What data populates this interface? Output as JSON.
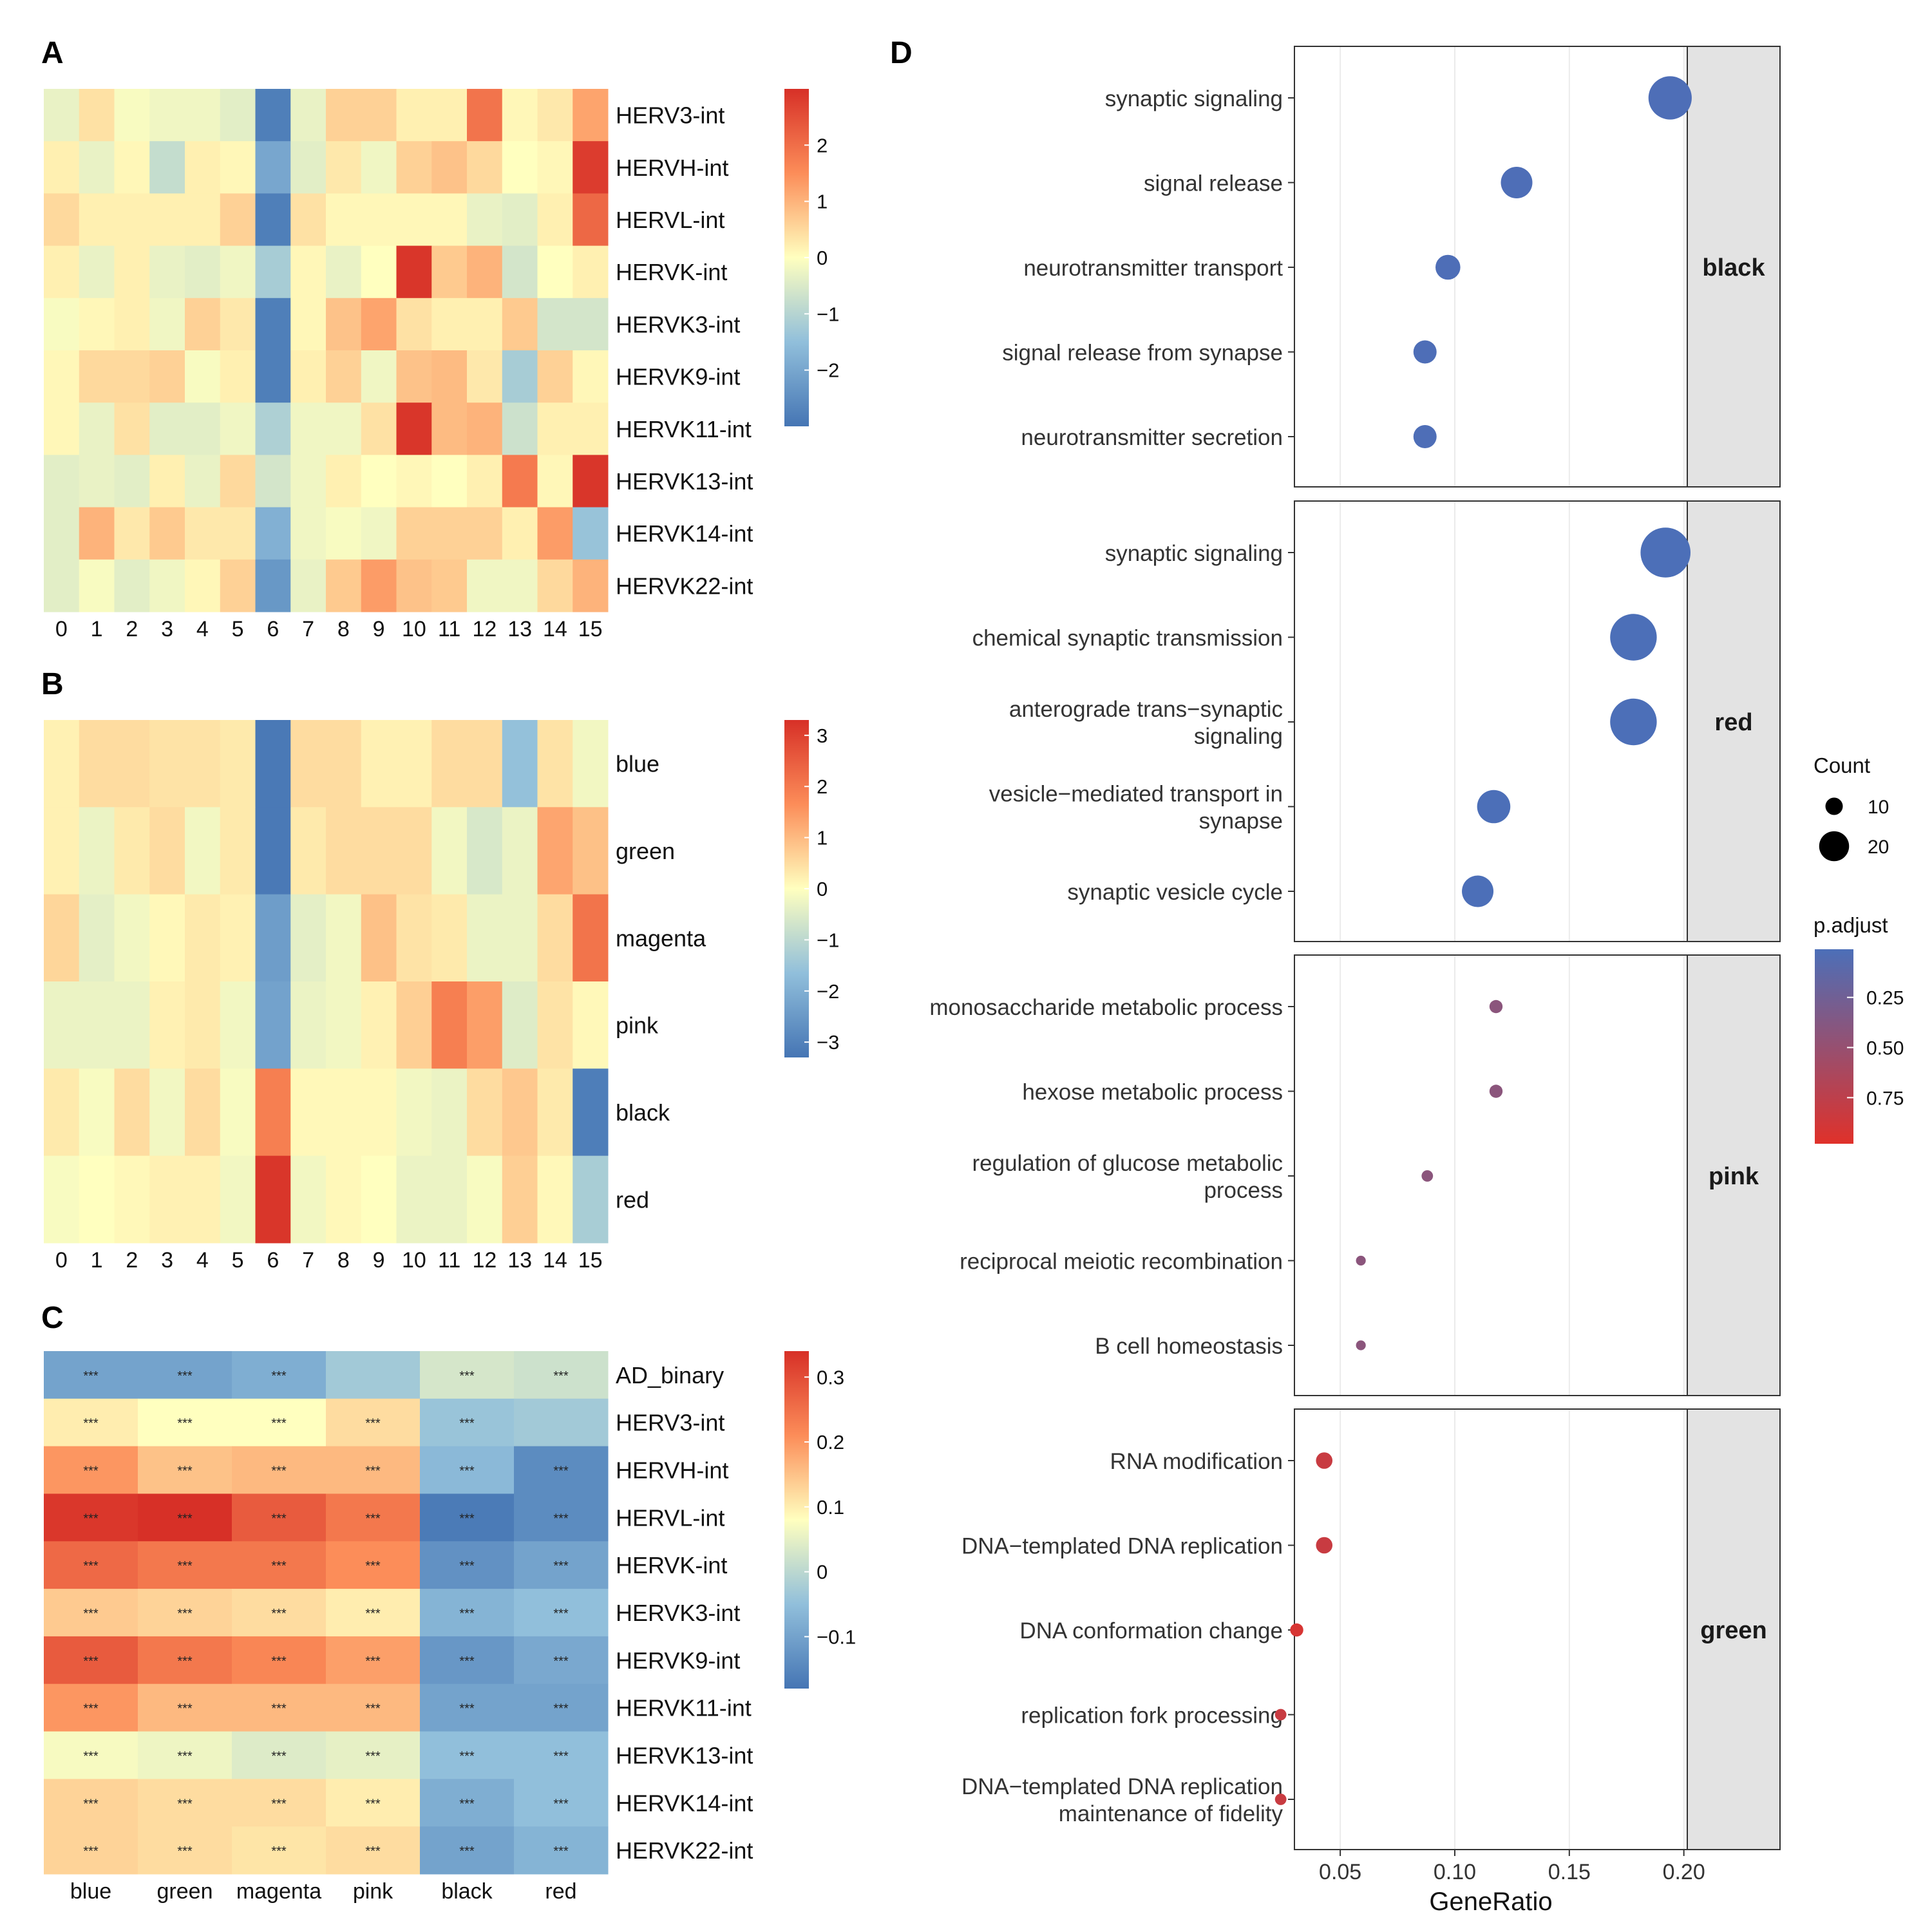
{
  "figure": {
    "panel_labels": [
      "A",
      "B",
      "C",
      "D"
    ],
    "colors": {
      "div_low": "#4575b4",
      "div_midlow": "#91bfdb",
      "div_mid": "#ffffbf",
      "div_midhigh": "#fc8d59",
      "div_high": "#d73027",
      "padj_low": "#4c6fb8",
      "padj_high": "#e0312a",
      "facet_strip": "#e3e3e3",
      "grid": "#ebebeb"
    }
  },
  "chart_data": [
    {
      "id": "A",
      "type": "heatmap",
      "columns": [
        "0",
        "1",
        "2",
        "3",
        "4",
        "5",
        "6",
        "7",
        "8",
        "9",
        "10",
        "11",
        "12",
        "13",
        "14",
        "15"
      ],
      "rows": [
        "HERV3-int",
        "HERVH-int",
        "HERVL-int",
        "HERVK-int",
        "HERVK3-int",
        "HERVK9-int",
        "HERVK11-int",
        "HERVK13-int",
        "HERVK14-int",
        "HERVK22-int"
      ],
      "values": [
        [
          -0.3,
          0.4,
          -0.1,
          -0.2,
          -0.2,
          -0.4,
          -2.8,
          -0.3,
          0.6,
          0.6,
          0.2,
          0.2,
          1.9,
          0.1,
          0.3,
          1.2
        ],
        [
          0.2,
          -0.3,
          0.1,
          -0.8,
          0.2,
          0.1,
          -2.0,
          -0.4,
          0.3,
          -0.2,
          0.6,
          0.8,
          0.5,
          0.0,
          0.1,
          2.8
        ],
        [
          0.5,
          0.2,
          0.2,
          0.2,
          0.2,
          0.6,
          -2.8,
          0.4,
          0.1,
          0.1,
          0.1,
          0.1,
          -0.3,
          -0.4,
          0.2,
          2.1
        ],
        [
          0.2,
          -0.3,
          0.2,
          -0.3,
          -0.4,
          -0.2,
          -1.2,
          0.1,
          -0.3,
          0.0,
          2.9,
          0.7,
          1.0,
          -0.6,
          0.0,
          0.2
        ],
        [
          -0.1,
          0.1,
          0.2,
          -0.2,
          0.6,
          0.3,
          -2.8,
          0.1,
          0.8,
          1.2,
          0.4,
          0.2,
          0.2,
          0.7,
          -0.6,
          -0.6
        ],
        [
          0.1,
          0.5,
          0.5,
          0.6,
          -0.1,
          0.2,
          -2.8,
          0.2,
          0.6,
          -0.2,
          0.8,
          0.9,
          0.3,
          -1.2,
          0.6,
          0.1
        ],
        [
          0.1,
          -0.3,
          0.4,
          -0.4,
          -0.4,
          -0.2,
          -1.1,
          -0.2,
          -0.2,
          0.4,
          2.9,
          0.9,
          1.0,
          -0.7,
          0.2,
          0.2
        ],
        [
          -0.4,
          -0.3,
          -0.4,
          0.2,
          -0.3,
          0.5,
          -0.6,
          -0.2,
          0.2,
          0.0,
          0.1,
          0.0,
          0.2,
          1.8,
          0.1,
          2.9
        ],
        [
          -0.4,
          1.0,
          0.3,
          0.7,
          0.3,
          0.3,
          -1.8,
          -0.2,
          -0.1,
          -0.2,
          0.6,
          0.6,
          0.6,
          0.2,
          1.3,
          -1.4
        ],
        [
          -0.4,
          -0.1,
          -0.4,
          -0.2,
          0.1,
          0.6,
          -2.3,
          -0.3,
          0.7,
          1.3,
          0.8,
          0.7,
          -0.2,
          -0.2,
          0.5,
          1.0
        ]
      ],
      "legend_ticks": [
        2,
        1,
        0,
        -1,
        -2
      ],
      "legend_tick_labels": [
        "2",
        "1",
        "0",
        "−1",
        "−2"
      ],
      "range": [
        -3,
        3
      ]
    },
    {
      "id": "B",
      "type": "heatmap",
      "columns": [
        "0",
        "1",
        "2",
        "3",
        "4",
        "5",
        "6",
        "7",
        "8",
        "9",
        "10",
        "11",
        "12",
        "13",
        "14",
        "15"
      ],
      "rows": [
        "blue",
        "green",
        "magenta",
        "pink",
        "black",
        "red"
      ],
      "values": [
        [
          0.2,
          0.5,
          0.5,
          0.4,
          0.4,
          0.3,
          -3.2,
          0.5,
          0.5,
          0.2,
          0.2,
          0.5,
          0.5,
          -1.6,
          0.4,
          -0.2
        ],
        [
          0.2,
          -0.3,
          0.3,
          0.5,
          -0.2,
          0.3,
          -3.2,
          0.3,
          0.5,
          0.5,
          0.5,
          -0.2,
          -0.6,
          -0.3,
          1.3,
          0.9
        ],
        [
          0.6,
          -0.4,
          -0.2,
          0.1,
          0.3,
          0.2,
          -2.4,
          -0.4,
          -0.2,
          0.9,
          0.4,
          0.3,
          -0.3,
          -0.3,
          0.5,
          2.1
        ],
        [
          -0.3,
          -0.3,
          -0.3,
          0.2,
          0.3,
          -0.2,
          -2.3,
          -0.3,
          -0.2,
          0.2,
          0.7,
          1.9,
          1.4,
          -0.5,
          0.4,
          0.1
        ],
        [
          0.3,
          -0.1,
          0.5,
          -0.2,
          0.5,
          -0.1,
          1.9,
          0.1,
          0.1,
          0.1,
          -0.2,
          -0.3,
          0.5,
          0.8,
          0.3,
          -3.1
        ],
        [
          -0.1,
          0.0,
          0.1,
          0.2,
          0.2,
          -0.2,
          3.2,
          -0.2,
          0.1,
          0.0,
          -0.3,
          -0.3,
          -0.1,
          0.7,
          0.1,
          -1.3
        ]
      ],
      "legend_ticks": [
        3,
        2,
        1,
        0,
        -1,
        -2,
        -3
      ],
      "legend_tick_labels": [
        "3",
        "2",
        "1",
        "0",
        "−1",
        "−2",
        "−3"
      ],
      "range": [
        -3.3,
        3.3
      ]
    },
    {
      "id": "C",
      "type": "heatmap",
      "columns": [
        "blue",
        "green",
        "magenta",
        "pink",
        "black",
        "red"
      ],
      "rows": [
        "AD_binary",
        "HERV3-int",
        "HERVH-int",
        "HERVL-int",
        "HERVK-int",
        "HERVK3-int",
        "HERVK9-int",
        "HERVK11-int",
        "HERVK13-int",
        "HERVK14-int",
        "HERVK22-int"
      ],
      "values": [
        [
          -0.1,
          -0.1,
          -0.08,
          -0.03,
          0.03,
          0.02
        ],
        [
          0.1,
          0.08,
          0.08,
          0.12,
          -0.04,
          -0.03
        ],
        [
          0.2,
          0.15,
          0.16,
          0.16,
          -0.06,
          -0.14
        ],
        [
          0.33,
          0.34,
          0.28,
          0.24,
          -0.17,
          -0.14
        ],
        [
          0.26,
          0.24,
          0.24,
          0.21,
          -0.13,
          -0.1
        ],
        [
          0.14,
          0.13,
          0.12,
          0.1,
          -0.07,
          -0.05
        ],
        [
          0.28,
          0.24,
          0.22,
          0.19,
          -0.12,
          -0.09
        ],
        [
          0.2,
          0.16,
          0.16,
          0.16,
          -0.1,
          -0.1
        ],
        [
          0.07,
          0.06,
          0.04,
          0.05,
          -0.05,
          -0.05
        ],
        [
          0.13,
          0.12,
          0.12,
          0.1,
          -0.08,
          -0.05
        ],
        [
          0.13,
          0.12,
          0.11,
          0.12,
          -0.1,
          -0.07
        ]
      ],
      "annotations": [
        [
          "***",
          "***",
          "***",
          "",
          "***",
          "***"
        ],
        [
          "***",
          "***",
          "***",
          "***",
          "***",
          ""
        ],
        [
          "***",
          "***",
          "***",
          "***",
          "***",
          "***"
        ],
        [
          "***",
          "***",
          "***",
          "***",
          "***",
          "***"
        ],
        [
          "***",
          "***",
          "***",
          "***",
          "***",
          "***"
        ],
        [
          "***",
          "***",
          "***",
          "***",
          "***",
          "***"
        ],
        [
          "***",
          "***",
          "***",
          "***",
          "***",
          "***"
        ],
        [
          "***",
          "***",
          "***",
          "***",
          "***",
          "***"
        ],
        [
          "***",
          "***",
          "***",
          "***",
          "***",
          "***"
        ],
        [
          "***",
          "***",
          "***",
          "***",
          "***",
          "***"
        ],
        [
          "***",
          "***",
          "***",
          "***",
          "***",
          "***"
        ]
      ],
      "legend_ticks": [
        0.3,
        0.2,
        0.1,
        0,
        -0.1
      ],
      "legend_tick_labels": [
        "0.3",
        "0.2",
        "0.1",
        "0",
        "−0.1"
      ],
      "range": [
        -0.18,
        0.34
      ]
    },
    {
      "id": "D",
      "type": "scatter",
      "xlabel": "GeneRatio",
      "x_ticks": [
        0.05,
        0.1,
        0.15,
        0.2
      ],
      "x_tick_labels": [
        "0.05",
        "0.10",
        "0.15",
        "0.20"
      ],
      "xlim": [
        0.03,
        0.2015
      ],
      "facets": [
        {
          "name": "black",
          "terms": [
            {
              "label": [
                "synaptic signaling"
              ],
              "x": 0.194,
              "count": 22,
              "padj": 0.02
            },
            {
              "label": [
                "signal release"
              ],
              "x": 0.127,
              "count": 15,
              "padj": 0.02
            },
            {
              "label": [
                "neurotransmitter transport"
              ],
              "x": 0.097,
              "count": 11,
              "padj": 0.02
            },
            {
              "label": [
                "signal release from synapse"
              ],
              "x": 0.087,
              "count": 10,
              "padj": 0.02
            },
            {
              "label": [
                "neurotransmitter secretion"
              ],
              "x": 0.087,
              "count": 10,
              "padj": 0.02
            }
          ]
        },
        {
          "name": "red",
          "terms": [
            {
              "label": [
                "synaptic signaling"
              ],
              "x": 0.192,
              "count": 26,
              "padj": 0.01
            },
            {
              "label": [
                "chemical synaptic transmission"
              ],
              "x": 0.178,
              "count": 24,
              "padj": 0.01
            },
            {
              "label": [
                "anterograde trans−synaptic",
                "signaling"
              ],
              "x": 0.178,
              "count": 24,
              "padj": 0.01
            },
            {
              "label": [
                "vesicle−mediated transport in",
                "synapse"
              ],
              "x": 0.117,
              "count": 16,
              "padj": 0.01
            },
            {
              "label": [
                "synaptic vesicle cycle"
              ],
              "x": 0.11,
              "count": 15,
              "padj": 0.01
            }
          ]
        },
        {
          "name": "pink",
          "terms": [
            {
              "label": [
                "monosaccharide metabolic process"
              ],
              "x": 0.118,
              "count": 4,
              "padj": 0.42
            },
            {
              "label": [
                "hexose metabolic process"
              ],
              "x": 0.118,
              "count": 4,
              "padj": 0.42
            },
            {
              "label": [
                "regulation of glucose metabolic",
                "process"
              ],
              "x": 0.088,
              "count": 3,
              "padj": 0.42
            },
            {
              "label": [
                "reciprocal meiotic recombination"
              ],
              "x": 0.059,
              "count": 2,
              "padj": 0.42
            },
            {
              "label": [
                "B cell homeostasis"
              ],
              "x": 0.059,
              "count": 2,
              "padj": 0.42
            }
          ]
        },
        {
          "name": "green",
          "terms": [
            {
              "label": [
                "RNA modification"
              ],
              "x": 0.043,
              "count": 6,
              "padj": 0.82
            },
            {
              "label": [
                "DNA−templated DNA replication"
              ],
              "x": 0.043,
              "count": 6,
              "padj": 0.82
            },
            {
              "label": [
                "DNA conformation change"
              ],
              "x": 0.031,
              "count": 4,
              "padj": 0.92
            },
            {
              "label": [
                "replication fork processing"
              ],
              "x": 0.024,
              "count": 3,
              "padj": 0.82
            },
            {
              "label": [
                "DNA−templated DNA replication",
                "maintenance of fidelity"
              ],
              "x": 0.024,
              "count": 3,
              "padj": 0.82
            }
          ]
        }
      ],
      "legend_count": {
        "title": "Count",
        "values": [
          10,
          20
        ],
        "labels": [
          "10",
          "20"
        ]
      },
      "legend_padj": {
        "title": "p.adjust",
        "ticks": [
          0.25,
          0.5,
          0.75
        ],
        "tick_labels": [
          "0.25",
          "0.50",
          "0.75"
        ],
        "range": [
          0.01,
          0.98
        ]
      }
    }
  ]
}
